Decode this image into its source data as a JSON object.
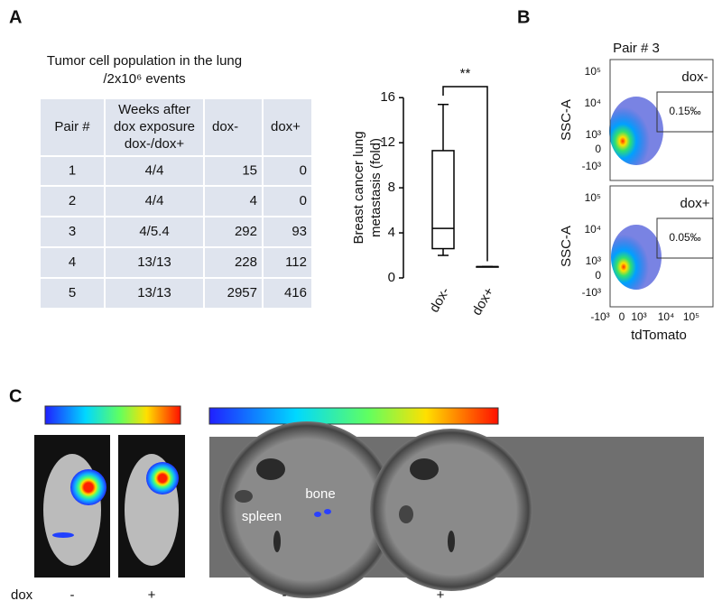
{
  "panel_labels": [
    "A",
    "B",
    "C"
  ],
  "table": {
    "title": [
      "Tumor cell population in the lung",
      "/2x10⁶ events"
    ],
    "header": [
      "Pair #",
      [
        "Weeks after",
        "dox exposure",
        "dox-/dox+"
      ],
      "dox-",
      "dox+"
    ],
    "rows": [
      [
        1,
        "4/4",
        15,
        0
      ],
      [
        2,
        "4/4",
        4,
        0
      ],
      [
        3,
        "4/5.4",
        292,
        93
      ],
      [
        4,
        "13/13",
        228,
        112
      ],
      [
        5,
        "13/13",
        2957,
        416
      ]
    ]
  },
  "chart_data": {
    "type": "box",
    "ylabel": [
      "Breast cancer lung",
      "metastasis (fold)"
    ],
    "categories": [
      "dox-",
      "dox+"
    ],
    "boxes": [
      {
        "min": 2,
        "q1": 2.6,
        "median": 4.4,
        "q3": 11.3,
        "max": 15.4
      },
      {
        "min": 1,
        "q1": 1,
        "median": 1,
        "q3": 1,
        "max": 1
      }
    ],
    "ylim": [
      0,
      16.5
    ],
    "yticks": [
      0,
      4,
      8,
      12,
      16
    ],
    "annotation": "**",
    "color": "#000000"
  },
  "flow": {
    "title": "Pair # 3",
    "ylabel": "SSC-A",
    "xlabel": "tdTomato",
    "yticks": [
      "10⁵",
      "10⁴",
      "10³",
      "0",
      "-10³"
    ],
    "xticks": [
      "-10³",
      "0",
      "10³",
      "10⁴",
      "10⁵"
    ],
    "plots": [
      {
        "label": "dox-",
        "gate": "0.15‰"
      },
      {
        "label": "dox+",
        "gate": "0.05‰"
      }
    ]
  },
  "imaging": {
    "row_label": "dox",
    "lumi_conditions": [
      "-",
      "+"
    ],
    "dish_conditions": [
      "-",
      "+"
    ],
    "organs": [
      "spleen",
      "bone"
    ]
  }
}
